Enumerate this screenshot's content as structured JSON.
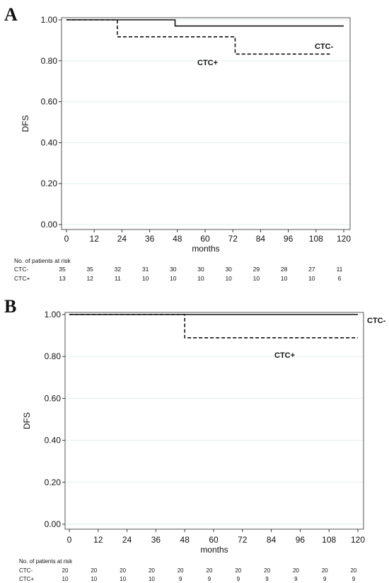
{
  "chart_data": [
    {
      "panel": "A",
      "type": "line",
      "step": true,
      "ylabel": "DFS",
      "xlabel": "months",
      "xlim": [
        0,
        120
      ],
      "ylim": [
        0,
        1
      ],
      "x_ticks": [
        0,
        12,
        24,
        36,
        48,
        60,
        72,
        84,
        96,
        108,
        120
      ],
      "y_ticks": [
        0.0,
        0.2,
        0.4,
        0.6,
        0.8,
        1.0
      ],
      "y_tick_labels": [
        "0.00",
        "0.20",
        "0.40",
        "0.60",
        "0.80",
        "1.00"
      ],
      "grid": true,
      "series": [
        {
          "name": "CTC-",
          "style": "solid",
          "x": [
            0,
            47,
            120
          ],
          "y": [
            1.0,
            0.97,
            0.97
          ]
        },
        {
          "name": "CTC+",
          "style": "dashed",
          "x": [
            0,
            22,
            73,
            114
          ],
          "y": [
            1.0,
            0.917,
            0.833,
            0.833
          ]
        }
      ],
      "risk_table": {
        "title": "No. of patients at risk",
        "rows": [
          {
            "label": "CTC-",
            "values": [
              "35",
              "35",
              "32",
              "31",
              "30",
              "30",
              "30",
              "29",
              "28",
              "27",
              "11"
            ]
          },
          {
            "label": "CTC+",
            "values": [
              "13",
              "12",
              "11",
              "10",
              "10",
              "10",
              "10",
              "10",
              "10",
              "10",
              "6"
            ]
          }
        ]
      }
    },
    {
      "panel": "B",
      "type": "line",
      "step": true,
      "ylabel": "DFS",
      "xlabel": "months",
      "xlim": [
        0,
        120
      ],
      "ylim": [
        0,
        1
      ],
      "x_ticks": [
        0,
        12,
        24,
        36,
        48,
        60,
        72,
        84,
        96,
        108,
        120
      ],
      "y_ticks": [
        0.0,
        0.2,
        0.4,
        0.6,
        0.8,
        1.0
      ],
      "y_tick_labels": [
        "0.00",
        "0.20",
        "0.40",
        "0.60",
        "0.80",
        "1.00"
      ],
      "grid": true,
      "series": [
        {
          "name": "CTC-",
          "style": "solid",
          "x": [
            0,
            120
          ],
          "y": [
            1.0,
            1.0
          ]
        },
        {
          "name": "CTC+",
          "style": "dashed",
          "x": [
            0,
            48,
            120
          ],
          "y": [
            1.0,
            0.889,
            0.889
          ]
        }
      ],
      "risk_table": {
        "title": "No. of patients at risk",
        "rows": [
          {
            "label": "CTC-",
            "values": [
              "20",
              "20",
              "20",
              "20",
              "20",
              "20",
              "20",
              "20",
              "20",
              "20",
              "20"
            ]
          },
          {
            "label": "CTC+",
            "values": [
              "10",
              "10",
              "10",
              "10",
              "9",
              "9",
              "9",
              "9",
              "9",
              "9",
              "9"
            ]
          }
        ]
      }
    }
  ]
}
